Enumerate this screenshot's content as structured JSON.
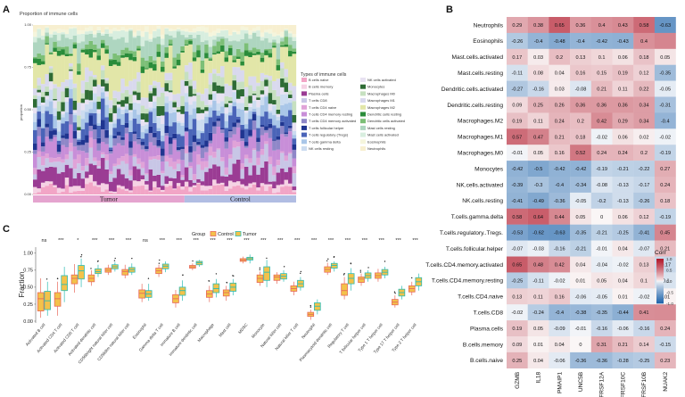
{
  "colors": {
    "tumor_bar": "#e5a4cf",
    "control_bar": "#b1bde3",
    "control_box": "#e8695b",
    "tumor_box": "#2bbcb3",
    "box_fill": "#f3c24a",
    "corr_pos": "#b2182b",
    "corr_neg": "#2166ac",
    "bg": "#ffffff"
  },
  "panels": {
    "a": {
      "letter": "A"
    },
    "b": {
      "letter": "B"
    },
    "c": {
      "letter": "C"
    }
  },
  "chart_data": [
    {
      "panel": "A",
      "type": "bar",
      "stacked": true,
      "title": "Proportion of immune cells",
      "ylabel": "proportion",
      "ylim": [
        0,
        1
      ],
      "yticks": [
        "0.00",
        "0.25",
        "0.50",
        "0.75",
        "1.00"
      ],
      "groups": [
        {
          "name": "Tumor",
          "n_samples": 38
        },
        {
          "name": "Control",
          "n_samples": 28
        }
      ],
      "legend_title": "Types of immune cells",
      "legend_col1": [
        {
          "name": "B cells naive",
          "color": "#f2a5c6"
        },
        {
          "name": "B cells memory",
          "color": "#f5d2e4"
        },
        {
          "name": "Plasma cells",
          "color": "#9b3c94"
        },
        {
          "name": "T cells CD8",
          "color": "#c8c6e6"
        },
        {
          "name": "T cells CD4 naive",
          "color": "#e0a3d8"
        },
        {
          "name": "T cells CD4 memory resting",
          "color": "#c88ed8"
        },
        {
          "name": "T cells CD4 memory activated",
          "color": "#8f87c8"
        },
        {
          "name": "T cells follicular helper",
          "color": "#1f3590"
        },
        {
          "name": "T cells regulatory (Tregs)",
          "color": "#4a64b8"
        },
        {
          "name": "T cells gamma delta",
          "color": "#a9c6e8"
        },
        {
          "name": "NK cells resting",
          "color": "#ccdcf0"
        }
      ],
      "legend_col2": [
        {
          "name": "NK cells activated",
          "color": "#e8e2f2"
        },
        {
          "name": "Monocytes",
          "color": "#2e6b35"
        },
        {
          "name": "Macrophages M0",
          "color": "#c6e0c0"
        },
        {
          "name": "Macrophages M1",
          "color": "#d9d9ee"
        },
        {
          "name": "Macrophages M2",
          "color": "#e2e6a8"
        },
        {
          "name": "Dendritic cells resting",
          "color": "#2a8c3a"
        },
        {
          "name": "Dendritic cells activated",
          "color": "#7cbf77"
        },
        {
          "name": "Mast cells resting",
          "color": "#aed6c0"
        },
        {
          "name": "Mast cells activated",
          "color": "#d8eedf"
        },
        {
          "name": "Eosinophils",
          "color": "#f5f5dc"
        },
        {
          "name": "Neutrophils",
          "color": "#f7efd0"
        }
      ]
    },
    {
      "panel": "B",
      "type": "heatmap",
      "rows": [
        "Neutrophils",
        "Eosinophils",
        "Mast.cells.activated",
        "Mast.cells.resting",
        "Dendritic.cells.activated",
        "Dendritic.cells.resting",
        "Macrophages.M2",
        "Macrophages.M1",
        "Macrophages.M0",
        "Monocytes",
        "NK.cells.activated",
        "NK.cells.resting",
        "T.cells.gamma.delta",
        "T.cells.regulatory..Tregs.",
        "T.cells.follicular.helper",
        "T.cells.CD4.memory.activated",
        "T.cells.CD4.memory.resting",
        "T.cells.CD4.naive",
        "T.cells.CD8",
        "Plasma.cells",
        "B.cells.memory",
        "B.cells.naive"
      ],
      "columns": [
        "GZMB",
        "IL18",
        "PMAIP1",
        "UNC5B",
        "TNFRSF12A",
        "TNFRSF10C",
        "TNFRSF10B",
        "NUAK2"
      ],
      "value_labels": [
        [
          "0.29",
          "0.38",
          "0.65",
          "0.36",
          "0.4",
          "0.43",
          "0.58",
          "-0.63"
        ],
        [
          "-0.26",
          "-0.4",
          "-0.48",
          "-0.4",
          "-0.42",
          "-0.43",
          "0.4",
          ""
        ],
        [
          "0.17",
          "0.03",
          "0.2",
          "0.13",
          "0.1",
          "0.06",
          "0.18",
          "0.05"
        ],
        [
          "-0.11",
          "0.08",
          "0.04",
          "0.16",
          "0.15",
          "0.19",
          "0.12",
          "-0.35"
        ],
        [
          "-0.27",
          "-0.16",
          "0.03",
          "-0.08",
          "0.21",
          "0.11",
          "0.22",
          "-0.05"
        ],
        [
          "0.09",
          "0.25",
          "0.26",
          "0.36",
          "0.36",
          "0.36",
          "0.34",
          "-0.31"
        ],
        [
          "0.19",
          "0.11",
          "0.24",
          "0.2",
          "0.42",
          "0.29",
          "0.34",
          "-0.4"
        ],
        [
          "0.57",
          "0.47",
          "0.21",
          "0.18",
          "-0.02",
          "0.06",
          "0.02",
          "-0.02"
        ],
        [
          "-0.01",
          "0.05",
          "0.16",
          "0.52",
          "0.24",
          "0.24",
          "0.2",
          "-0.19"
        ],
        [
          "-0.42",
          "-0.5",
          "-0.42",
          "-0.42",
          "-0.19",
          "-0.21",
          "-0.22",
          "0.27"
        ],
        [
          "-0.39",
          "-0.3",
          "-0.4",
          "-0.34",
          "-0.08",
          "-0.13",
          "-0.17",
          "0.24"
        ],
        [
          "-0.41",
          "-0.49",
          "-0.36",
          "-0.05",
          "-0.2",
          "-0.13",
          "-0.26",
          "0.18"
        ],
        [
          "0.58",
          "0.64",
          "0.44",
          "0.05",
          "0",
          "0.06",
          "0.12",
          "-0.19"
        ],
        [
          "-0.53",
          "-0.62",
          "-0.63",
          "-0.35",
          "-0.21",
          "-0.25",
          "-0.41",
          "0.45"
        ],
        [
          "-0.07",
          "-0.03",
          "-0.16",
          "-0.21",
          "-0.01",
          "0.04",
          "-0.07",
          "0.21"
        ],
        [
          "0.65",
          "0.48",
          "0.42",
          "0.04",
          "-0.04",
          "-0.02",
          "0.13",
          "-0.17"
        ],
        [
          "-0.25",
          "-0.11",
          "-0.02",
          "0.01",
          "0.05",
          "0.04",
          "0.1",
          "-0.1"
        ],
        [
          "0.13",
          "0.11",
          "0.16",
          "-0.06",
          "-0.05",
          "0.01",
          "-0.02",
          "0.01"
        ],
        [
          "-0.02",
          "-0.24",
          "-0.4",
          "-0.38",
          "-0.35",
          "-0.44",
          "0.41",
          ""
        ],
        [
          "0.19",
          "0.05",
          "-0.09",
          "-0.01",
          "-0.16",
          "-0.06",
          "-0.16",
          "0.24"
        ],
        [
          "0.09",
          "0.01",
          "0.04",
          "0",
          "0.31",
          "0.21",
          "0.14",
          "-0.15"
        ],
        [
          "0.25",
          "0.04",
          "-0.06",
          "-0.36",
          "-0.36",
          "-0.28",
          "-0.25",
          "0.23"
        ]
      ],
      "legend_title": "Corr",
      "legend_ticks": [
        "1.0",
        "0.5",
        "0.0",
        "-0.5",
        "-1.0"
      ],
      "vlim": [
        -1,
        1
      ]
    },
    {
      "panel": "C",
      "type": "boxplot",
      "ylabel": "Fraction",
      "ylim": [
        0,
        1.05
      ],
      "yticks": [
        "0.00",
        "0.25",
        "0.50",
        "0.75",
        "1.00"
      ],
      "legend_title": "Group",
      "legend_items": [
        "Control",
        "Tumor"
      ],
      "categories": [
        "Activated B cell",
        "Activated CD4 T cell",
        "Activated CD8 T cell",
        "Activated dendritic cell",
        "CD56bright natural killer cell",
        "CD56dim natural killer cell",
        "Eosinophil",
        "Gamma delta T cell",
        "Immature B cell",
        "Immature dendritic cell",
        "Macrophage",
        "Mast cell",
        "MDSC",
        "Monocyte",
        "Natural killer cell",
        "Natural killer T cell",
        "Neutrophil",
        "Plasmacytoid dendritic cell",
        "Regulatory T cell",
        "T follicular helper cell",
        "Type 1 T helper cell",
        "Type 17 T helper cell",
        "Type 2 T helper cell"
      ],
      "significance": [
        "ns",
        "***",
        "*",
        "***",
        "***",
        "***",
        "ns",
        "***",
        "***",
        "***",
        "***",
        "***",
        "***",
        "***",
        "***",
        "***",
        "***",
        "***",
        "***",
        "***",
        "***",
        "***",
        "***"
      ],
      "control": [
        [
          0.05,
          0.15,
          0.33,
          0.42,
          0.63
        ],
        [
          0.08,
          0.22,
          0.33,
          0.42,
          0.58
        ],
        [
          0.42,
          0.55,
          0.63,
          0.68,
          0.84
        ],
        [
          0.52,
          0.58,
          0.63,
          0.68,
          0.75
        ],
        [
          0.68,
          0.72,
          0.75,
          0.78,
          0.83
        ],
        [
          0.63,
          0.68,
          0.73,
          0.76,
          0.83
        ],
        [
          0.28,
          0.34,
          0.41,
          0.46,
          0.55
        ],
        [
          0.65,
          0.7,
          0.74,
          0.78,
          0.83
        ],
        [
          0.2,
          0.27,
          0.33,
          0.39,
          0.46
        ],
        [
          0.75,
          0.78,
          0.8,
          0.82,
          0.85
        ],
        [
          0.28,
          0.35,
          0.4,
          0.45,
          0.52
        ],
        [
          0.3,
          0.37,
          0.42,
          0.46,
          0.52
        ],
        [
          0.85,
          0.88,
          0.9,
          0.92,
          0.95
        ],
        [
          0.52,
          0.57,
          0.63,
          0.68,
          0.73
        ],
        [
          0.55,
          0.6,
          0.65,
          0.68,
          0.72
        ],
        [
          0.38,
          0.44,
          0.48,
          0.52,
          0.58
        ],
        [
          0.02,
          0.07,
          0.1,
          0.13,
          0.17
        ],
        [
          0.68,
          0.72,
          0.76,
          0.8,
          0.86
        ],
        [
          0.32,
          0.38,
          0.45,
          0.55,
          0.65
        ],
        [
          0.52,
          0.57,
          0.62,
          0.65,
          0.7
        ],
        [
          0.58,
          0.63,
          0.67,
          0.71,
          0.77
        ],
        [
          0.2,
          0.24,
          0.28,
          0.32,
          0.38
        ],
        [
          0.38,
          0.43,
          0.48,
          0.52,
          0.58
        ]
      ],
      "tumor": [
        [
          0.08,
          0.17,
          0.3,
          0.44,
          0.58
        ],
        [
          0.28,
          0.45,
          0.54,
          0.67,
          0.8
        ],
        [
          0.5,
          0.62,
          0.74,
          0.82,
          0.92
        ],
        [
          0.65,
          0.7,
          0.73,
          0.77,
          0.83
        ],
        [
          0.73,
          0.77,
          0.8,
          0.83,
          0.87
        ],
        [
          0.68,
          0.72,
          0.76,
          0.79,
          0.85
        ],
        [
          0.3,
          0.35,
          0.4,
          0.45,
          0.55
        ],
        [
          0.72,
          0.77,
          0.81,
          0.84,
          0.88
        ],
        [
          0.3,
          0.38,
          0.45,
          0.5,
          0.6
        ],
        [
          0.8,
          0.83,
          0.86,
          0.88,
          0.9
        ],
        [
          0.35,
          0.42,
          0.48,
          0.55,
          0.62
        ],
        [
          0.38,
          0.44,
          0.5,
          0.56,
          0.62
        ],
        [
          0.85,
          0.9,
          0.92,
          0.94,
          0.98
        ],
        [
          0.5,
          0.6,
          0.72,
          0.8,
          0.9
        ],
        [
          0.58,
          0.62,
          0.66,
          0.7,
          0.75
        ],
        [
          0.45,
          0.5,
          0.55,
          0.6,
          0.65
        ],
        [
          0.1,
          0.16,
          0.22,
          0.27,
          0.32
        ],
        [
          0.73,
          0.78,
          0.82,
          0.85,
          0.88
        ],
        [
          0.45,
          0.55,
          0.63,
          0.7,
          0.78
        ],
        [
          0.58,
          0.63,
          0.67,
          0.71,
          0.75
        ],
        [
          0.63,
          0.68,
          0.72,
          0.76,
          0.8
        ],
        [
          0.32,
          0.37,
          0.42,
          0.47,
          0.52
        ],
        [
          0.45,
          0.52,
          0.58,
          0.64,
          0.7
        ]
      ]
    }
  ]
}
